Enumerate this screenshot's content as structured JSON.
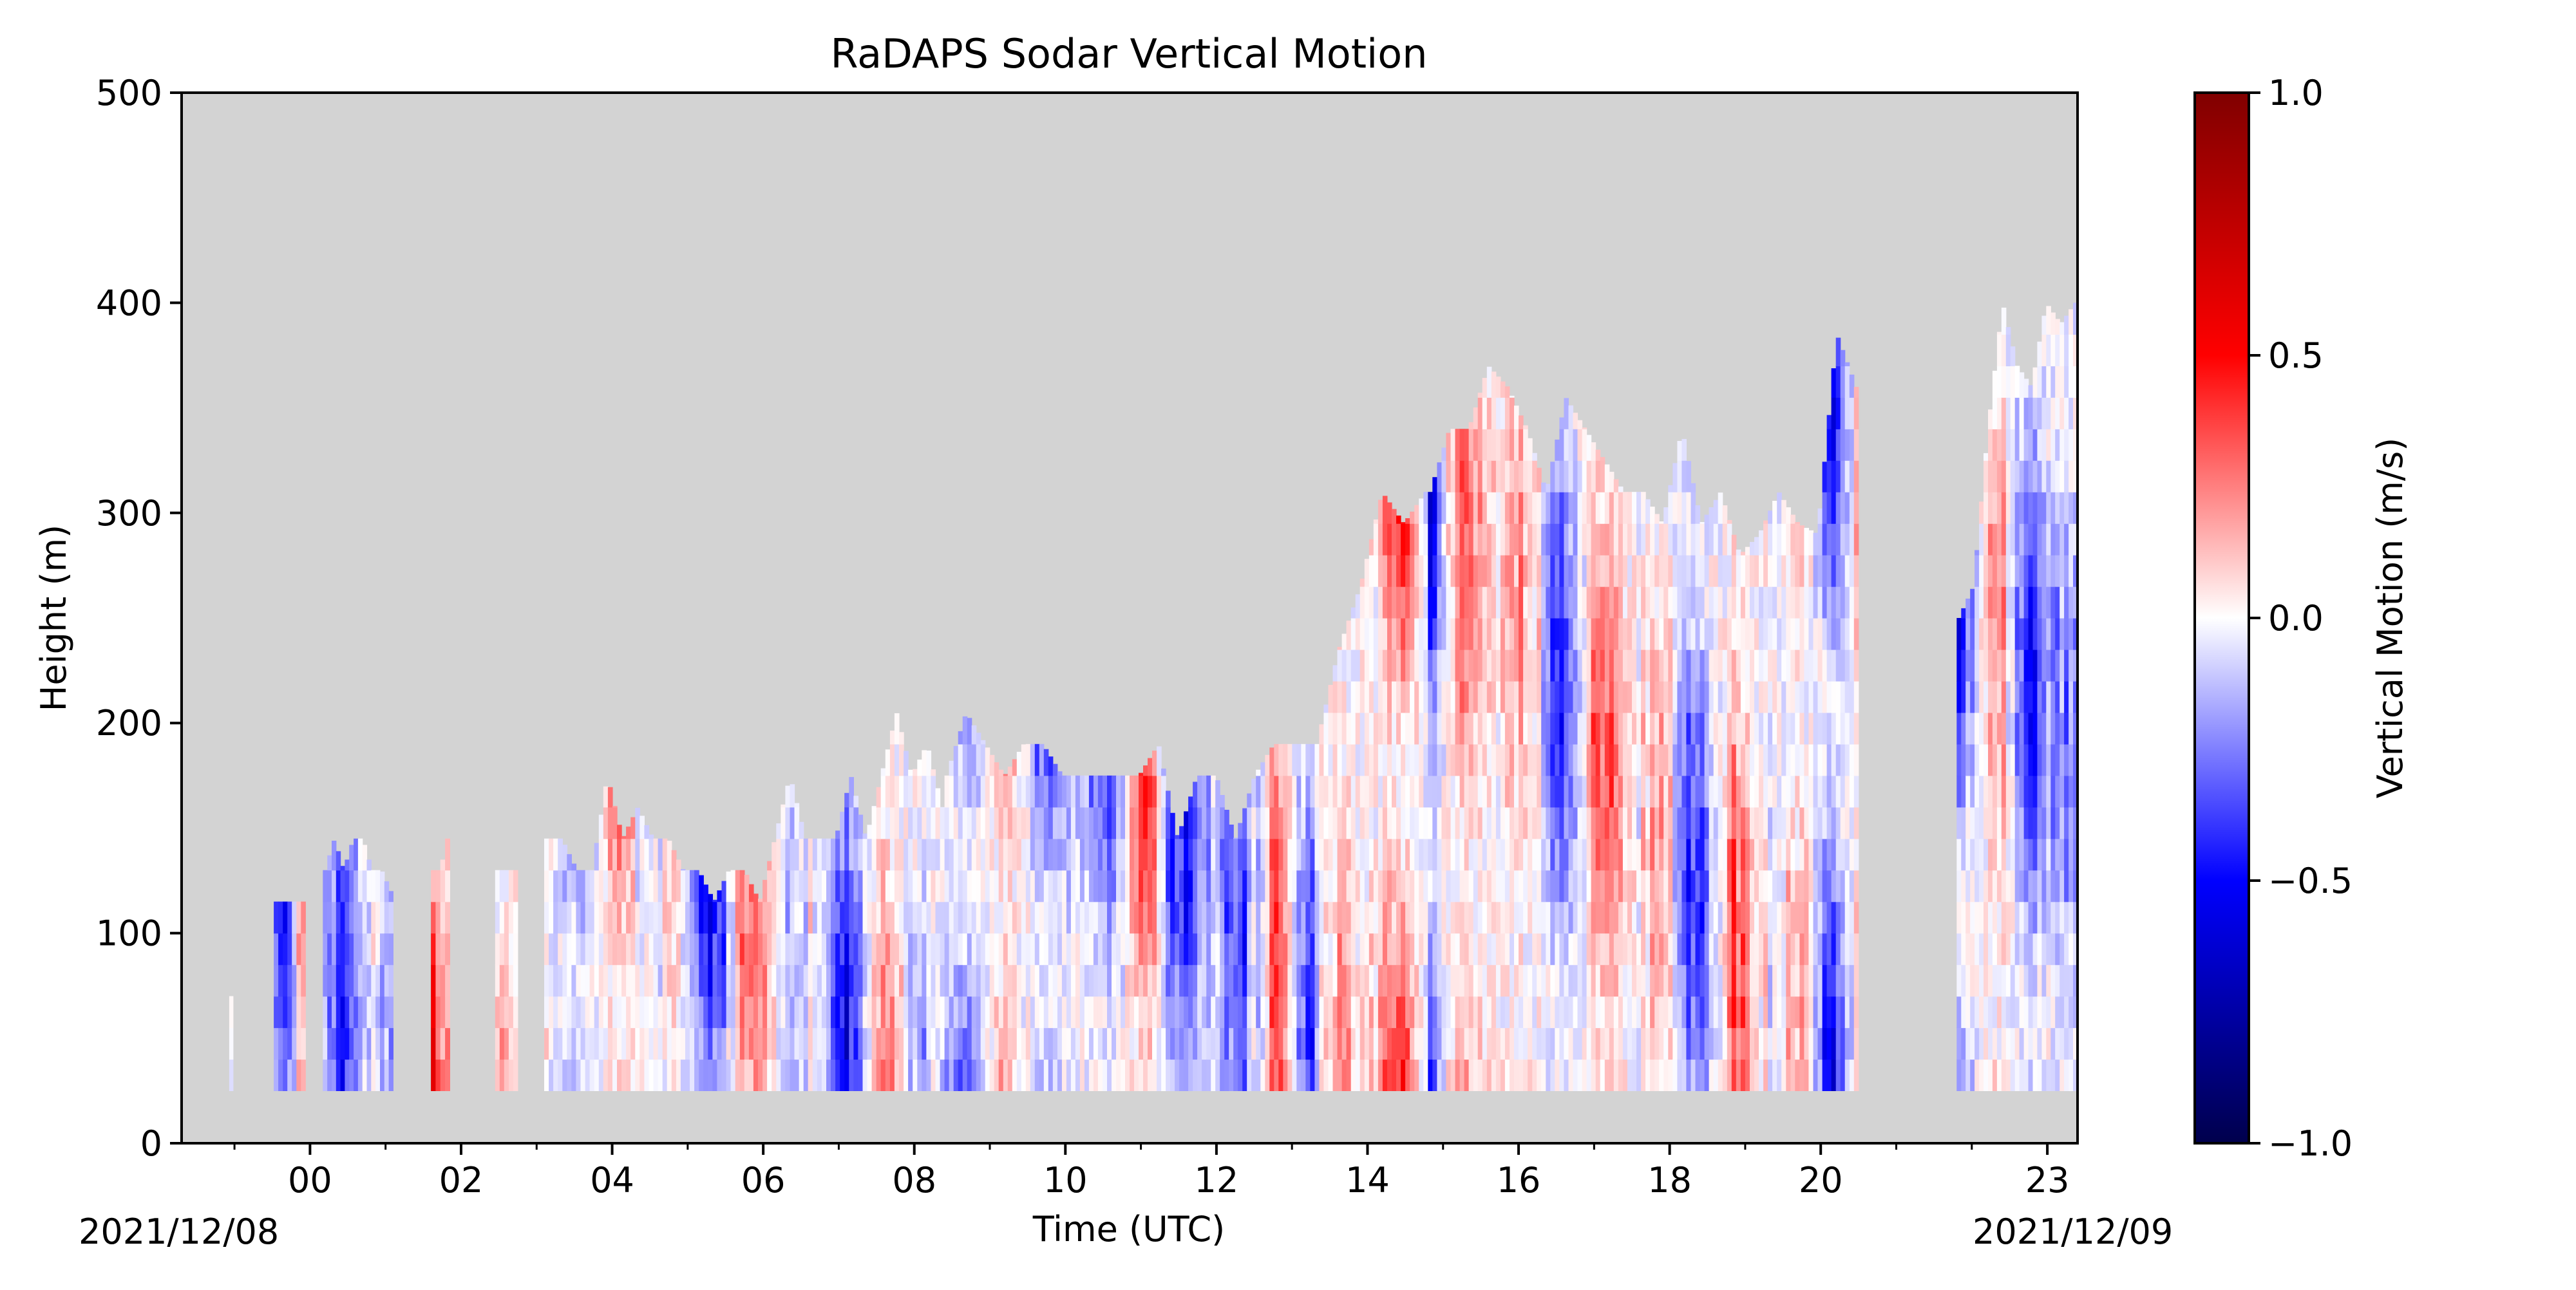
{
  "chart_data": {
    "type": "heatmap",
    "title": "RaDAPS Sodar Vertical Motion",
    "xlabel": "Time (UTC)",
    "ylabel": "Height (m)",
    "x_tick_labels": [
      "00",
      "02",
      "04",
      "06",
      "08",
      "10",
      "12",
      "14",
      "16",
      "18",
      "20",
      "23"
    ],
    "x_tick_hours": [
      0,
      2,
      4,
      6,
      8,
      10,
      12,
      14,
      16,
      18,
      20,
      23
    ],
    "xlim_hours": [
      -1.7,
      23.4
    ],
    "date_labels": {
      "start": "2021/12/08",
      "end": "2021/12/09"
    },
    "ylim": [
      0,
      500
    ],
    "y_ticks": [
      0,
      100,
      200,
      300,
      400,
      500
    ],
    "colorbar": {
      "label": "Vertical Motion (m/s)",
      "range": [
        -1.0,
        1.0
      ],
      "ticks": [
        -1.0,
        -0.5,
        0.0,
        0.5,
        1.0
      ],
      "tick_labels": [
        "−1.0",
        "−0.5",
        "0.0",
        "0.5",
        "1.0"
      ],
      "colormap": "seismic"
    },
    "missing_color": "#d3d3d3",
    "grid": false,
    "data_min_height": 25,
    "segments": [
      {
        "t": [
          -1.07,
          -1.02
        ],
        "tops": [
          70,
          70
        ],
        "bias": 0
      },
      {
        "t": [
          -0.48,
          -0.06
        ],
        "tops": [
          115,
          115
        ],
        "bias": -0.05
      },
      {
        "t": [
          0.17,
          1.1
        ],
        "tops": [
          130,
          145,
          130,
          145,
          145,
          130,
          130,
          120
        ],
        "bias": -0.1
      },
      {
        "t": [
          1.6,
          1.85
        ],
        "tops": [
          130,
          130,
          145
        ],
        "bias": 0.22
      },
      {
        "t": [
          2.45,
          2.75
        ],
        "tops": [
          130,
          130
        ],
        "bias": 0.12
      },
      {
        "t": [
          3.1,
          8.4
        ],
        "tops": [
          145,
          145,
          130,
          130,
          175,
          145,
          160,
          145,
          145,
          130,
          130,
          115,
          130,
          130,
          115,
          145,
          175,
          145,
          145,
          145,
          175,
          145,
          175,
          205,
          175,
          190,
          160
        ],
        "bias": -0.08
      },
      {
        "t": [
          8.4,
          13.3
        ],
        "tops": [
          175,
          205,
          190,
          175,
          190,
          190,
          175,
          175,
          175,
          175,
          175,
          190,
          145,
          175,
          175,
          145,
          175,
          190,
          190,
          190
        ],
        "bias": -0.15
      },
      {
        "t": [
          13.3,
          14.8
        ],
        "tops": [
          190,
          235,
          265,
          310,
          295,
          310
        ],
        "bias": 0.08
      },
      {
        "t": [
          14.8,
          20.5
        ],
        "tops": [
          310,
          340,
          340,
          370,
          360,
          340,
          310,
          355,
          340,
          325,
          310,
          310,
          295,
          340,
          295,
          310,
          280,
          290,
          310,
          295,
          290,
          385,
          360
        ],
        "bias": 0.0
      },
      {
        "t": [
          21.8,
          23.4
        ],
        "tops": [
          250,
          265,
          340,
          400,
          370,
          360,
          400,
          390,
          400
        ],
        "bias": -0.18
      }
    ]
  }
}
